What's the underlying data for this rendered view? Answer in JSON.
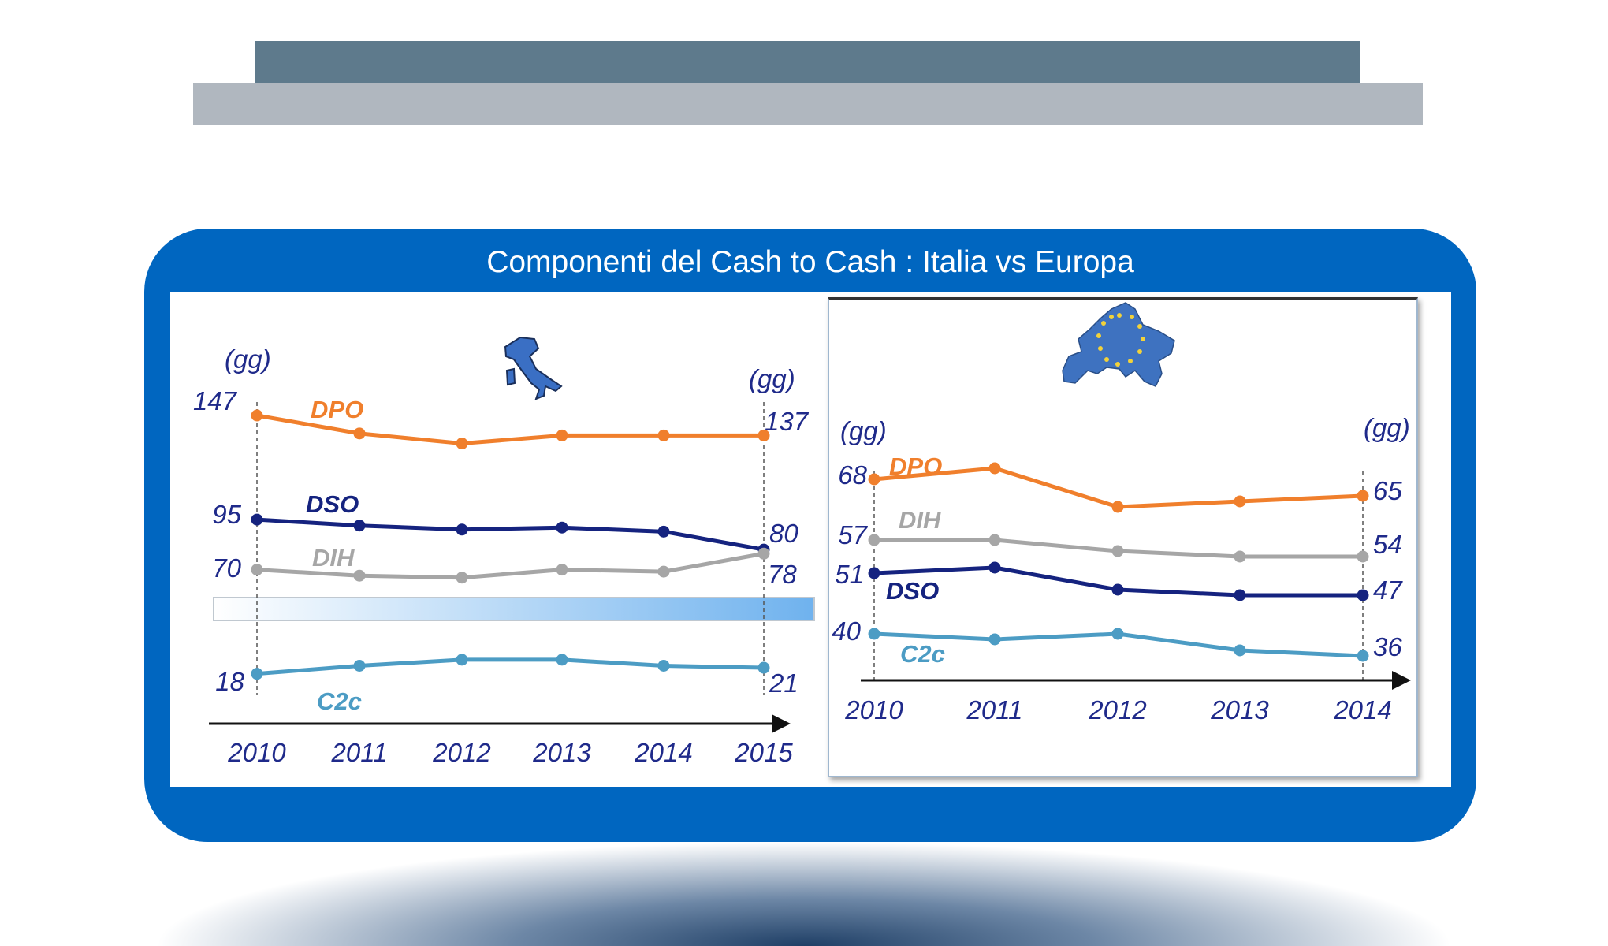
{
  "title": "Componenti del Cash to Cash : Italia vs Europa",
  "colors": {
    "panel": "#0066c0",
    "DPO": "#f07f2c",
    "DSO": "#15237f",
    "DIH": "#a6a6a6",
    "C2c": "#4c9cc4",
    "text": "#1f2a8a"
  },
  "chart_data": [
    {
      "type": "line",
      "region": "Italia",
      "icon": "italy-map-icon",
      "unit_label": "(gg)",
      "categories": [
        "2010",
        "2011",
        "2012",
        "2013",
        "2014",
        "2015"
      ],
      "series": [
        {
          "name": "DPO",
          "values": [
            147,
            138,
            133,
            137,
            137,
            137
          ],
          "start_label": "147",
          "end_label": "137"
        },
        {
          "name": "DSO",
          "values": [
            95,
            92,
            90,
            91,
            89,
            80
          ],
          "start_label": "95",
          "end_label": "80"
        },
        {
          "name": "DIH",
          "values": [
            70,
            67,
            66,
            70,
            69,
            78
          ],
          "start_label": "70",
          "end_label": "78"
        },
        {
          "name": "C2c",
          "values": [
            18,
            22,
            25,
            25,
            22,
            21
          ],
          "start_label": "18",
          "end_label": "21"
        }
      ]
    },
    {
      "type": "line",
      "region": "Europa",
      "icon": "europe-map-icon",
      "unit_label": "(gg)",
      "categories": [
        "2010",
        "2011",
        "2012",
        "2013",
        "2014"
      ],
      "series": [
        {
          "name": "DPO",
          "values": [
            68,
            70,
            63,
            64,
            65
          ],
          "start_label": "68",
          "end_label": "65"
        },
        {
          "name": "DIH",
          "values": [
            57,
            57,
            55,
            54,
            54
          ],
          "start_label": "57",
          "end_label": "54"
        },
        {
          "name": "DSO",
          "values": [
            51,
            52,
            48,
            47,
            47
          ],
          "start_label": "51",
          "end_label": "47"
        },
        {
          "name": "C2c",
          "values": [
            40,
            39,
            40,
            37,
            36
          ],
          "start_label": "40",
          "end_label": "36"
        }
      ]
    }
  ]
}
